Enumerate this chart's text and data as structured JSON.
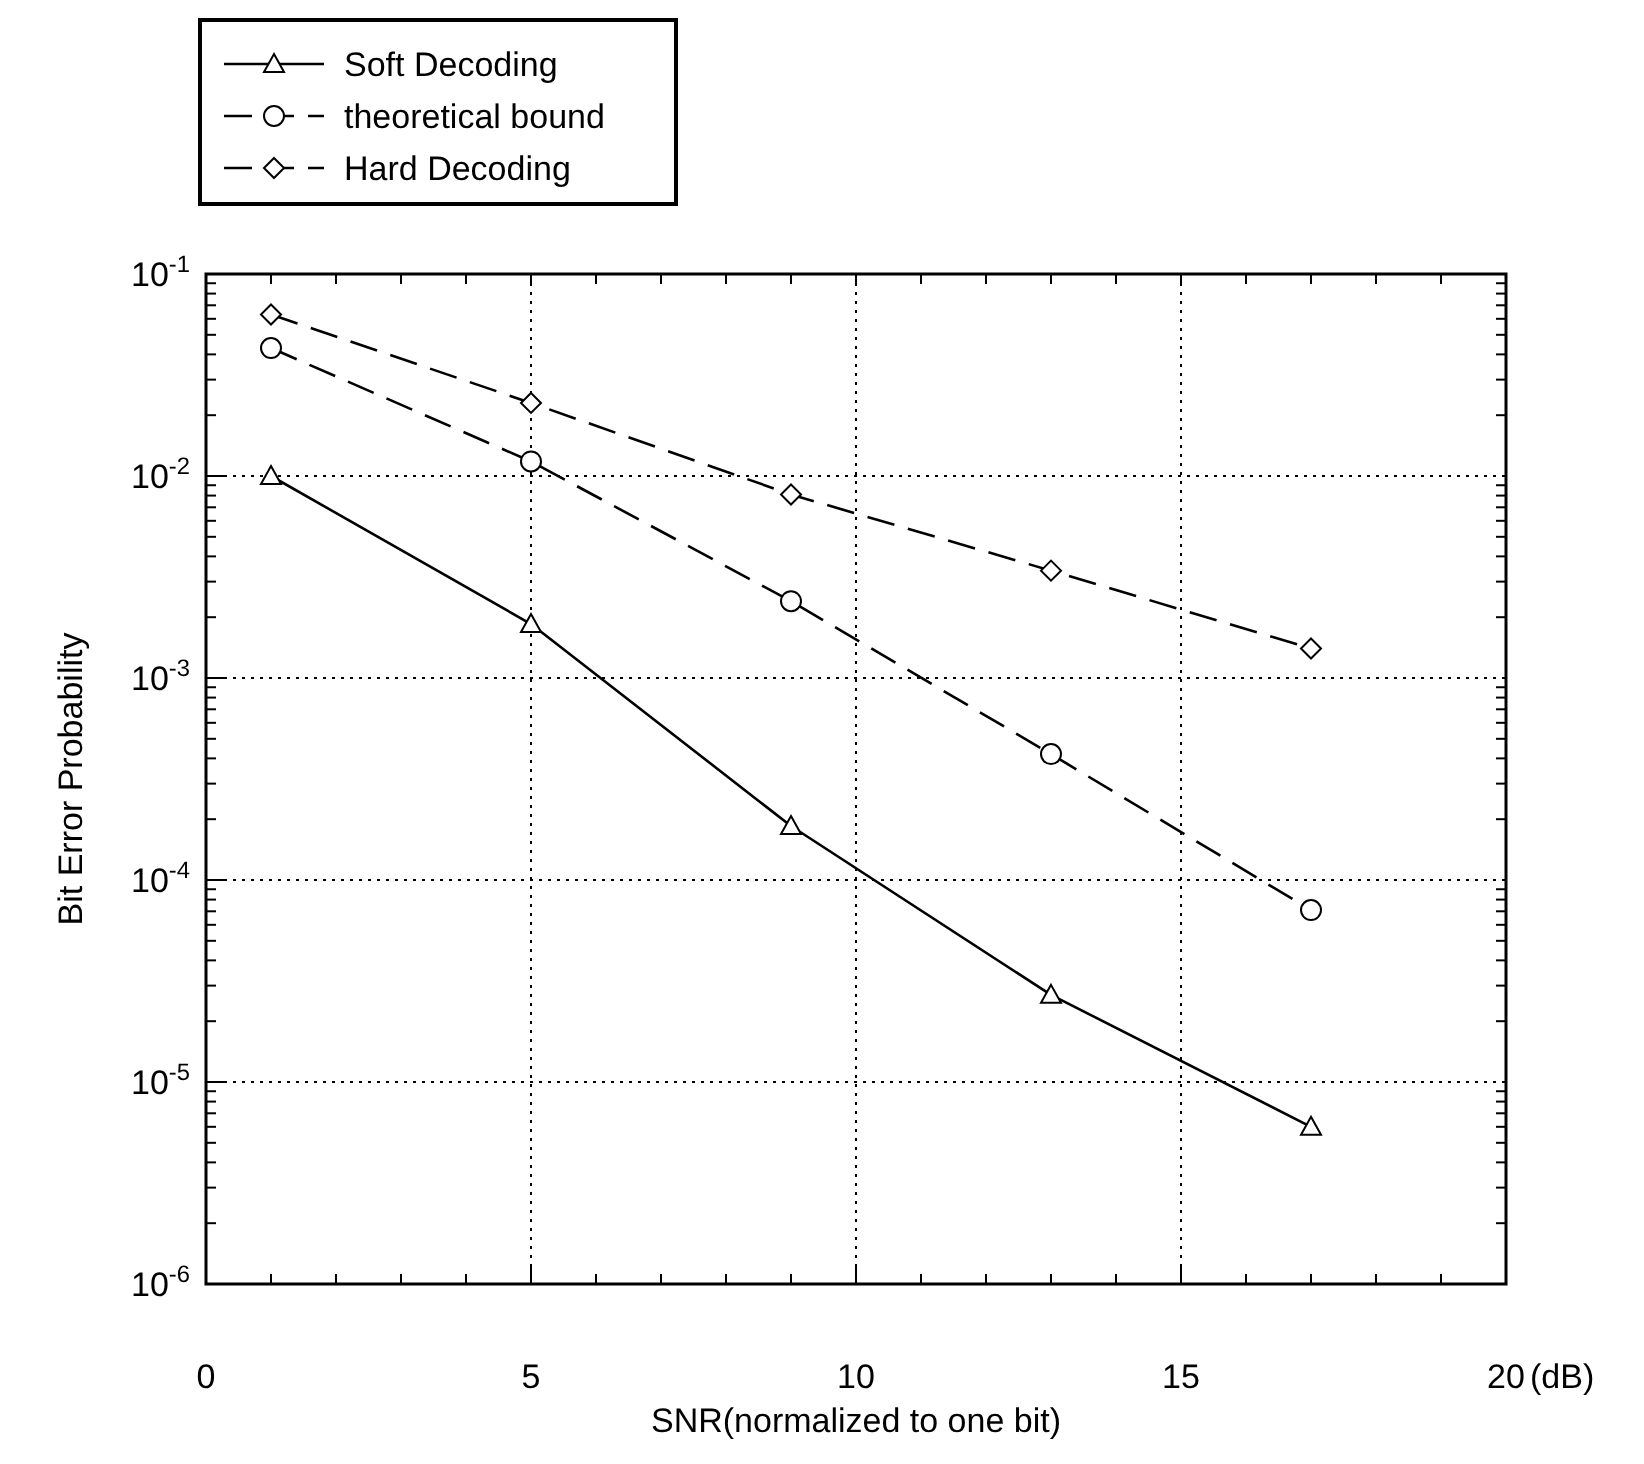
{
  "chart_data": {
    "type": "line",
    "xlabel": "SNR(normalized to one bit)",
    "ylabel": "Bit Error Probability",
    "annotations": [
      "(dB)"
    ],
    "x": [
      1,
      5,
      9,
      13,
      17
    ],
    "series": [
      {
        "name": "Soft Decoding",
        "color": "#000000",
        "marker": "triangle",
        "line_style": "solid",
        "values": [
          0.01,
          0.00185,
          0.000185,
          2.7e-05,
          6e-06
        ]
      },
      {
        "name": "theoretical bound",
        "color": "#000000",
        "marker": "circle",
        "line_style": "dashed",
        "values": [
          0.043,
          0.0118,
          0.0024,
          0.00042,
          7.1e-05
        ]
      },
      {
        "name": "Hard Decoding",
        "color": "#000000",
        "marker": "diamond",
        "line_style": "dashed",
        "values": [
          0.063,
          0.023,
          0.0081,
          0.0034,
          0.0014
        ]
      }
    ],
    "log": "y",
    "xlim": [
      0,
      20
    ],
    "xticks": [
      0,
      5,
      10,
      15,
      20
    ],
    "ylim": [
      1e-06,
      0.1
    ],
    "yticks": [
      {
        "value": 1e-06,
        "label": "10$^{-6}$"
      },
      {
        "value": 1e-05,
        "label": "10$^{-5}$"
      },
      {
        "value": 0.0001,
        "label": "10$^{-4}$"
      },
      {
        "value": 0.001,
        "label": "10$^{-3}$"
      },
      {
        "value": 0.01,
        "label": "10$^{-2}$"
      },
      {
        "value": 0.1,
        "label": "10$^{-1}$"
      }
    ],
    "grid": true,
    "legend": "top left"
  }
}
